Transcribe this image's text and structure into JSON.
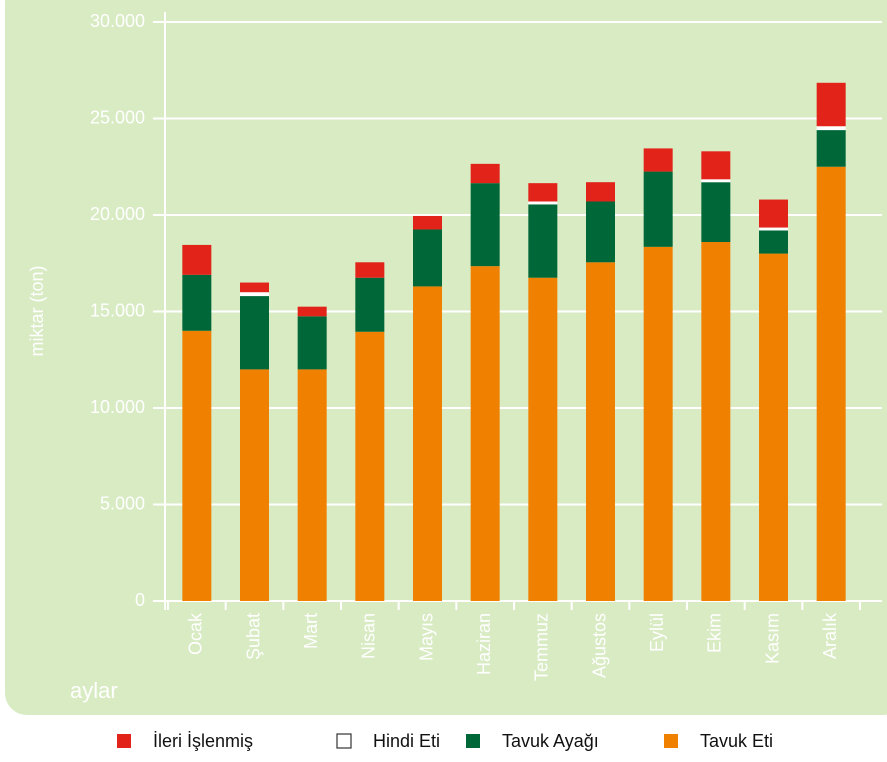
{
  "chart_data": {
    "type": "bar",
    "stacked": true,
    "y_label": "miktar (ton)",
    "x_label": "aylar",
    "categories": [
      "Ocak",
      "Şubat",
      "Mart",
      "Nisan",
      "Mayıs",
      "Haziran",
      "Temmuz",
      "Ağustos",
      "Eylül",
      "Ekim",
      "Kasım",
      "Aralık"
    ],
    "series": [
      {
        "name": "İleri İşlenmiş",
        "color": "#e2231a",
        "values": [
          1550,
          500,
          500,
          800,
          700,
          1000,
          950,
          1000,
          1200,
          1450,
          1450,
          2250
        ]
      },
      {
        "name": "Hindi Eti",
        "color": "#ffffff",
        "values": [
          0,
          200,
          0,
          0,
          0,
          0,
          150,
          0,
          0,
          150,
          150,
          200
        ]
      },
      {
        "name": "Tavuk Ayağı",
        "color": "#006838",
        "values": [
          2900,
          3800,
          2750,
          2800,
          2950,
          4300,
          3800,
          3150,
          3900,
          3100,
          1200,
          1900
        ]
      },
      {
        "name": "Tavuk Eti",
        "color": "#f08000",
        "values": [
          14000,
          12000,
          12000,
          13950,
          16300,
          17350,
          16750,
          17550,
          18350,
          18600,
          18000,
          22500
        ]
      }
    ],
    "ylim": [
      0,
      30000
    ],
    "yticks": [
      0,
      {
        "value": 5000,
        "label": "5.000"
      },
      {
        "value": 10000,
        "label": "10.000"
      },
      {
        "value": 15000,
        "label": "15.000"
      },
      {
        "value": 20000,
        "label": "20.000"
      },
      {
        "value": 25000,
        "label": "25.000"
      },
      {
        "value": 30000,
        "label": "30.000"
      }
    ],
    "grid": true,
    "legend": "bottom"
  }
}
